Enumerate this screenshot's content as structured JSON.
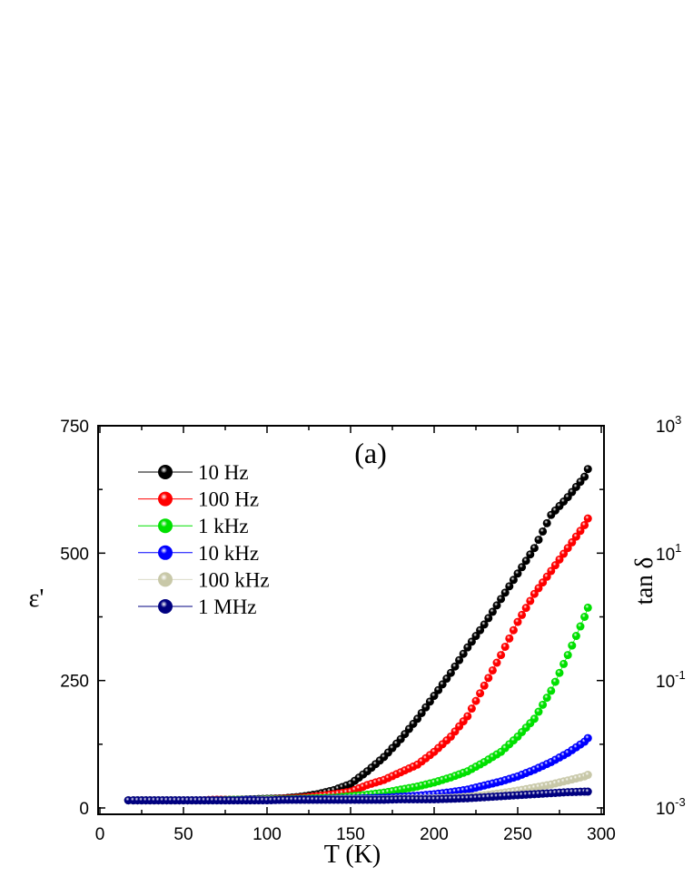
{
  "chart_data": {
    "type": "scatter",
    "panel_label": "(a)",
    "xlabel": "T (K)",
    "ylabel": "ε'",
    "xlim": [
      0,
      300
    ],
    "ylim": [
      0,
      750
    ],
    "xticks": [
      "0",
      "50",
      "100",
      "150",
      "200",
      "250",
      "300"
    ],
    "yticks": [
      "0",
      "250",
      "500",
      "750"
    ],
    "legend_position": "top-left",
    "grid": false,
    "x": [
      17,
      20,
      30,
      40,
      50,
      60,
      70,
      80,
      90,
      100,
      110,
      120,
      130,
      140,
      150,
      160,
      170,
      180,
      190,
      200,
      210,
      220,
      230,
      240,
      250,
      260,
      270,
      280,
      290,
      292
    ],
    "series": [
      {
        "name": "10 Hz",
        "color": "#000000",
        "values": [
          15,
          15,
          15,
          15,
          15,
          15,
          16,
          16,
          17,
          18,
          19,
          22,
          27,
          35,
          47,
          72,
          100,
          135,
          175,
          220,
          265,
          315,
          360,
          410,
          460,
          510,
          575,
          610,
          650,
          665
        ]
      },
      {
        "name": "100 Hz",
        "color": "#ff0000",
        "values": [
          15,
          15,
          15,
          15,
          15,
          15,
          16,
          16,
          16,
          17,
          18,
          20,
          23,
          27,
          32,
          45,
          55,
          70,
          85,
          110,
          140,
          180,
          240,
          300,
          365,
          420,
          465,
          510,
          555,
          568
        ]
      },
      {
        "name": "1 kHz",
        "color": "#00e000",
        "values": [
          15,
          15,
          15,
          15,
          15,
          15,
          15,
          16,
          16,
          17,
          17,
          18,
          19,
          20,
          23,
          26,
          30,
          36,
          42,
          50,
          60,
          72,
          90,
          110,
          140,
          175,
          230,
          300,
          375,
          393
        ]
      },
      {
        "name": "10 kHz",
        "color": "#0000ff",
        "values": [
          15,
          15,
          15,
          15,
          15,
          15,
          15,
          15,
          16,
          16,
          16,
          17,
          17,
          18,
          18,
          19,
          20,
          22,
          24,
          27,
          31,
          36,
          44,
          52,
          62,
          75,
          90,
          108,
          130,
          137
        ]
      },
      {
        "name": "100 kHz",
        "color": "#c8c8a8",
        "values": [
          15,
          15,
          15,
          15,
          15,
          15,
          15,
          15,
          15,
          16,
          16,
          16,
          16,
          17,
          17,
          17,
          17,
          18,
          18,
          19,
          20,
          22,
          25,
          29,
          34,
          40,
          46,
          54,
          62,
          65
        ]
      },
      {
        "name": "1 MHz",
        "color": "#000080",
        "values": [
          15,
          15,
          15,
          15,
          15,
          15,
          15,
          15,
          15,
          15,
          16,
          16,
          16,
          16,
          16,
          16,
          16,
          17,
          17,
          17,
          18,
          19,
          21,
          23,
          25,
          27,
          29,
          31,
          32,
          32
        ]
      }
    ],
    "right_axis": {
      "label": "tan δ",
      "scale": "log",
      "ticks": [
        {
          "base": "10",
          "exp": "3"
        },
        {
          "base": "10",
          "exp": "1"
        },
        {
          "base": "10",
          "exp": "-1"
        },
        {
          "base": "10",
          "exp": "-3"
        }
      ]
    }
  }
}
